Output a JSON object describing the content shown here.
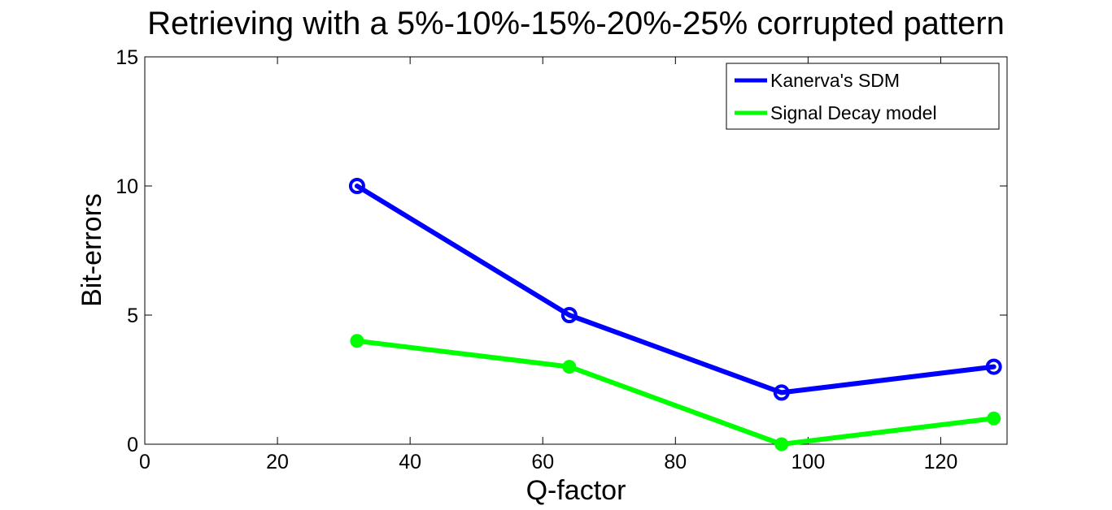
{
  "chart_data": {
    "type": "line",
    "title": "Retrieving with a 5%-10%-15%-20%-25% corrupted pattern",
    "xlabel": "Q-factor",
    "ylabel": "Bit-errors",
    "xlim": [
      0,
      130
    ],
    "ylim": [
      0,
      15
    ],
    "xticks": [
      0,
      20,
      40,
      60,
      80,
      100,
      120
    ],
    "yticks": [
      0,
      5,
      10,
      15
    ],
    "grid": false,
    "legend_location": "top-right",
    "series": [
      {
        "name": "Kanerva's SDM",
        "color": "#0000ff",
        "marker": "open-circle",
        "x": [
          32,
          64,
          96,
          128
        ],
        "y": [
          10,
          5,
          2,
          3
        ]
      },
      {
        "name": "Signal Decay model",
        "color": "#00ff00",
        "marker": "filled-circle",
        "x": [
          32,
          64,
          96,
          128
        ],
        "y": [
          4,
          3,
          0,
          1
        ]
      }
    ]
  }
}
